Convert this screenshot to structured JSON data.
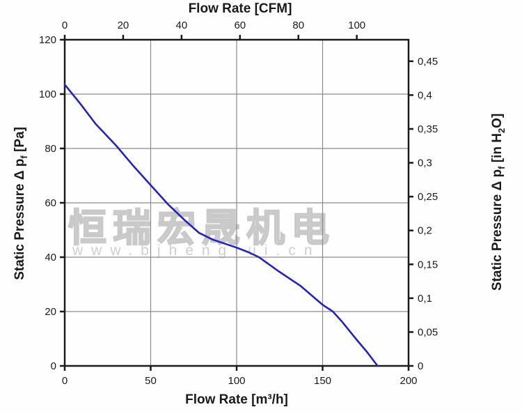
{
  "page": {
    "background": "#fefefe",
    "kind": "fan-performance-curve"
  },
  "watermark": {
    "cjk_text": "恒瑞宏晟机电",
    "url_text": "www.bjhengrui.cn",
    "color": "#cfcfcf"
  },
  "axis_titles": {
    "top": "Flow Rate [CFM]",
    "bottom": "Flow Rate [m³/h]",
    "left_main": "Static Pressure Δ p",
    "left_sub": "f",
    "left_unit": " [Pa]",
    "right_main": "Static Pressure Δ p",
    "right_sub": "f",
    "right_unit_pre": " [in H",
    "right_unit_sub": "2",
    "right_unit_post": "O]"
  },
  "chart_data": {
    "type": "line",
    "title": "Fan static pressure vs flow rate",
    "xlabel": "Flow Rate [m³/h]",
    "xlabel_secondary": "Flow Rate [CFM]",
    "ylabel": "Static Pressure Δ pf [Pa]",
    "ylabel_secondary": "Static Pressure Δ pf [in H2O]",
    "grid": true,
    "legend": "none",
    "colors": {
      "curve": "#2323be",
      "grid": "#8a8a8a",
      "frame": "#1a1a1a",
      "text": "#1a1a1a"
    },
    "x_axis_bottom": {
      "unit": "m³/h",
      "range": [
        0,
        200
      ],
      "tick_values": [
        0,
        50,
        100,
        150,
        200
      ],
      "tick_labels": [
        "0",
        "50",
        "100",
        "150",
        "200"
      ]
    },
    "x_axis_top": {
      "unit": "CFM",
      "m3h_per_unit": 1.699,
      "tick_values": [
        0,
        20,
        40,
        60,
        80,
        100
      ],
      "tick_labels": [
        "0",
        "20",
        "40",
        "60",
        "80",
        "100"
      ]
    },
    "y_axis_left": {
      "unit": "Pa",
      "range": [
        0,
        120
      ],
      "tick_values": [
        0,
        20,
        40,
        60,
        80,
        100,
        120
      ],
      "tick_labels": [
        "0",
        "20",
        "40",
        "60",
        "80",
        "100",
        "120"
      ]
    },
    "y_axis_right": {
      "unit": "in H2O",
      "pa_per_unit": 249.089,
      "tick_values": [
        0,
        0.05,
        0.1,
        0.15,
        0.2,
        0.25,
        0.3,
        0.35,
        0.4,
        0.45
      ],
      "tick_labels": [
        "0",
        "0,05",
        "0,1",
        "0,15",
        "0,2",
        "0,25",
        "0,3",
        "0,35",
        "0,4",
        "0,45"
      ]
    },
    "gridlines": {
      "vertical_m3h": [
        50,
        100,
        150
      ],
      "horizontal_pa": [
        20,
        40,
        60,
        80,
        100
      ]
    },
    "series": [
      {
        "name": "static-pressure-curve",
        "units": [
          "m³/h",
          "Pa"
        ],
        "points": [
          [
            0,
            103.5
          ],
          [
            9,
            96.5
          ],
          [
            18,
            89
          ],
          [
            30,
            81
          ],
          [
            40,
            73.5
          ],
          [
            50,
            66.5
          ],
          [
            60,
            59.5
          ],
          [
            70,
            53.5
          ],
          [
            78,
            49
          ],
          [
            86,
            46.5
          ],
          [
            94,
            44.8
          ],
          [
            100,
            43.5
          ],
          [
            107,
            41.8
          ],
          [
            113,
            40
          ],
          [
            124,
            35
          ],
          [
            137,
            29.5
          ],
          [
            150,
            22.5
          ],
          [
            156,
            20
          ],
          [
            161,
            16.5
          ],
          [
            170,
            9.5
          ],
          [
            176,
            5
          ],
          [
            182,
            0
          ]
        ]
      }
    ]
  }
}
